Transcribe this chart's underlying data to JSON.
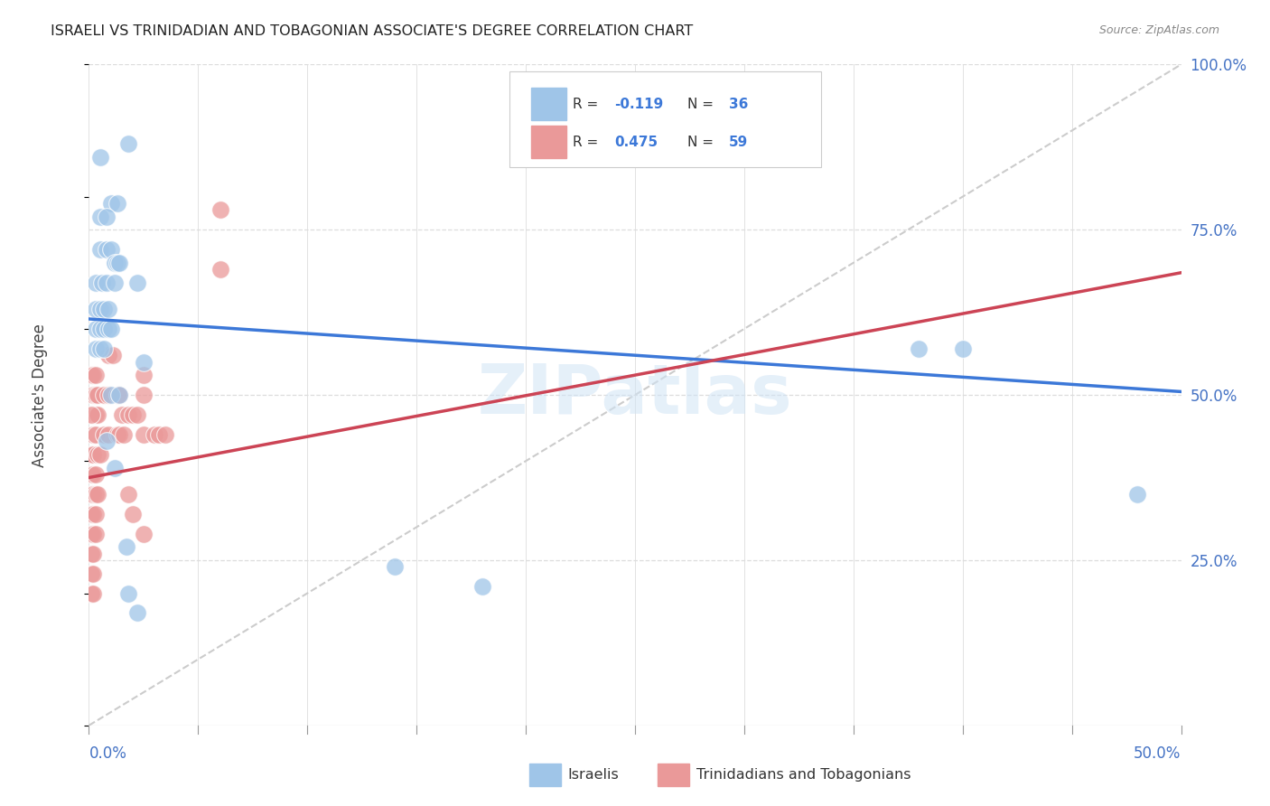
{
  "title": "ISRAELI VS TRINIDADIAN AND TOBAGONIAN ASSOCIATE'S DEGREE CORRELATION CHART",
  "source": "Source: ZipAtlas.com",
  "ylabel": "Associate's Degree",
  "legend_label1": "Israelis",
  "legend_label2": "Trinidadians and Tobagonians",
  "blue_color": "#9fc5e8",
  "pink_color": "#ea9999",
  "blue_line_color": "#3c78d8",
  "pink_line_color": "#cc4455",
  "diag_line_color": "#cccccc",
  "blue_scatter": [
    [
      0.005,
      0.86
    ],
    [
      0.01,
      0.79
    ],
    [
      0.013,
      0.79
    ],
    [
      0.018,
      0.88
    ],
    [
      0.005,
      0.77
    ],
    [
      0.008,
      0.77
    ],
    [
      0.005,
      0.72
    ],
    [
      0.008,
      0.72
    ],
    [
      0.01,
      0.72
    ],
    [
      0.012,
      0.7
    ],
    [
      0.013,
      0.7
    ],
    [
      0.014,
      0.7
    ],
    [
      0.003,
      0.67
    ],
    [
      0.006,
      0.67
    ],
    [
      0.008,
      0.67
    ],
    [
      0.012,
      0.67
    ],
    [
      0.003,
      0.63
    ],
    [
      0.005,
      0.63
    ],
    [
      0.007,
      0.63
    ],
    [
      0.009,
      0.63
    ],
    [
      0.003,
      0.6
    ],
    [
      0.005,
      0.6
    ],
    [
      0.007,
      0.6
    ],
    [
      0.009,
      0.6
    ],
    [
      0.01,
      0.6
    ],
    [
      0.003,
      0.57
    ],
    [
      0.005,
      0.57
    ],
    [
      0.007,
      0.57
    ],
    [
      0.022,
      0.67
    ],
    [
      0.025,
      0.55
    ],
    [
      0.01,
      0.5
    ],
    [
      0.014,
      0.5
    ],
    [
      0.008,
      0.43
    ],
    [
      0.012,
      0.39
    ],
    [
      0.017,
      0.27
    ],
    [
      0.018,
      0.2
    ],
    [
      0.022,
      0.17
    ],
    [
      0.38,
      0.57
    ],
    [
      0.4,
      0.57
    ],
    [
      0.48,
      0.35
    ],
    [
      0.14,
      0.24
    ],
    [
      0.18,
      0.21
    ]
  ],
  "pink_scatter": [
    [
      0.002,
      0.47
    ],
    [
      0.003,
      0.47
    ],
    [
      0.004,
      0.47
    ],
    [
      0.002,
      0.5
    ],
    [
      0.003,
      0.5
    ],
    [
      0.004,
      0.5
    ],
    [
      0.001,
      0.53
    ],
    [
      0.002,
      0.53
    ],
    [
      0.003,
      0.53
    ],
    [
      0.001,
      0.47
    ],
    [
      0.002,
      0.44
    ],
    [
      0.003,
      0.44
    ],
    [
      0.001,
      0.41
    ],
    [
      0.002,
      0.41
    ],
    [
      0.001,
      0.38
    ],
    [
      0.002,
      0.38
    ],
    [
      0.003,
      0.38
    ],
    [
      0.001,
      0.35
    ],
    [
      0.002,
      0.35
    ],
    [
      0.003,
      0.35
    ],
    [
      0.004,
      0.35
    ],
    [
      0.001,
      0.32
    ],
    [
      0.002,
      0.32
    ],
    [
      0.003,
      0.32
    ],
    [
      0.001,
      0.29
    ],
    [
      0.002,
      0.29
    ],
    [
      0.003,
      0.29
    ],
    [
      0.001,
      0.26
    ],
    [
      0.002,
      0.26
    ],
    [
      0.001,
      0.23
    ],
    [
      0.002,
      0.23
    ],
    [
      0.001,
      0.2
    ],
    [
      0.002,
      0.2
    ],
    [
      0.004,
      0.41
    ],
    [
      0.005,
      0.41
    ],
    [
      0.007,
      0.44
    ],
    [
      0.009,
      0.44
    ],
    [
      0.007,
      0.5
    ],
    [
      0.009,
      0.5
    ],
    [
      0.009,
      0.56
    ],
    [
      0.011,
      0.56
    ],
    [
      0.013,
      0.5
    ],
    [
      0.014,
      0.5
    ],
    [
      0.015,
      0.47
    ],
    [
      0.013,
      0.44
    ],
    [
      0.014,
      0.44
    ],
    [
      0.016,
      0.44
    ],
    [
      0.018,
      0.47
    ],
    [
      0.02,
      0.47
    ],
    [
      0.022,
      0.47
    ],
    [
      0.025,
      0.44
    ],
    [
      0.025,
      0.5
    ],
    [
      0.025,
      0.53
    ],
    [
      0.03,
      0.44
    ],
    [
      0.032,
      0.44
    ],
    [
      0.035,
      0.44
    ],
    [
      0.018,
      0.35
    ],
    [
      0.02,
      0.32
    ],
    [
      0.025,
      0.29
    ],
    [
      0.06,
      0.78
    ],
    [
      0.06,
      0.69
    ]
  ],
  "blue_line_x": [
    0.0,
    0.5
  ],
  "blue_line_y": [
    0.615,
    0.505
  ],
  "pink_line_x": [
    0.0,
    0.5
  ],
  "pink_line_y": [
    0.375,
    0.685
  ],
  "diag_line_x": [
    0.0,
    0.5
  ],
  "diag_line_y": [
    0.0,
    1.0
  ],
  "xlim": [
    0.0,
    0.5
  ],
  "ylim": [
    0.0,
    1.0
  ],
  "yticks": [
    0.0,
    0.25,
    0.5,
    0.75,
    1.0
  ],
  "ytick_labels_right": [
    "",
    "25.0%",
    "50.0%",
    "75.0%",
    "100.0%"
  ],
  "xtick_labels": [
    "0.0%",
    "50.0%"
  ],
  "watermark": "ZIPatlas",
  "background_color": "#ffffff",
  "grid_color": "#dddddd",
  "title_fontsize": 11.5,
  "tick_color": "#4472c4"
}
